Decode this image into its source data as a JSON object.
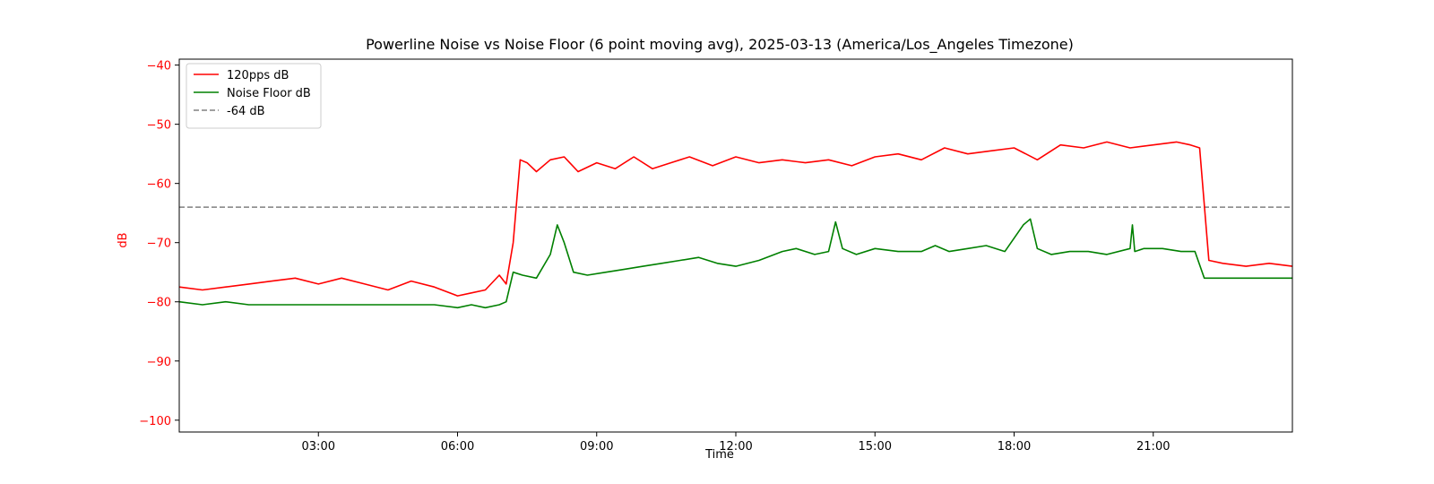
{
  "chart_data": {
    "type": "line",
    "title": "Powerline Noise vs Noise Floor (6 point moving avg), 2025-03-13 (America/Los_Angeles Timezone)",
    "xlabel": "Time",
    "ylabel": "dB",
    "xlim": [
      0,
      24
    ],
    "ylim": [
      -102,
      -39
    ],
    "xticks": [
      {
        "value": 3,
        "label": "03:00"
      },
      {
        "value": 6,
        "label": "06:00"
      },
      {
        "value": 9,
        "label": "09:00"
      },
      {
        "value": 12,
        "label": "12:00"
      },
      {
        "value": 15,
        "label": "15:00"
      },
      {
        "value": 18,
        "label": "18:00"
      },
      {
        "value": 21,
        "label": "21:00"
      }
    ],
    "yticks": [
      {
        "value": -40,
        "label": "−40"
      },
      {
        "value": -50,
        "label": "−50"
      },
      {
        "value": -60,
        "label": "−60"
      },
      {
        "value": -70,
        "label": "−70"
      },
      {
        "value": -80,
        "label": "−80"
      },
      {
        "value": -90,
        "label": "−90"
      },
      {
        "value": -100,
        "label": "−100"
      }
    ],
    "grid": false,
    "legend_position": "top-left",
    "series": [
      {
        "name": "120pps dB",
        "color": "#ff0000",
        "x": [
          0,
          0.5,
          1.0,
          1.5,
          2.0,
          2.5,
          3.0,
          3.5,
          4.0,
          4.5,
          5.0,
          5.5,
          6.0,
          6.3,
          6.6,
          6.9,
          7.05,
          7.2,
          7.35,
          7.5,
          7.7,
          8.0,
          8.3,
          8.6,
          9.0,
          9.4,
          9.8,
          10.2,
          10.6,
          11.0,
          11.5,
          12.0,
          12.5,
          13.0,
          13.5,
          14.0,
          14.5,
          15.0,
          15.5,
          16.0,
          16.5,
          17.0,
          17.5,
          18.0,
          18.5,
          19.0,
          19.5,
          20.0,
          20.5,
          21.0,
          21.5,
          21.8,
          22.0,
          22.2,
          22.5,
          23.0,
          23.5,
          24.0
        ],
        "values": [
          -77.5,
          -78.0,
          -77.5,
          -77.0,
          -76.5,
          -76.0,
          -77.0,
          -76.0,
          -77.0,
          -78.0,
          -76.5,
          -77.5,
          -79.0,
          -78.5,
          -78.0,
          -75.5,
          -77.0,
          -70.0,
          -56.0,
          -56.5,
          -58.0,
          -56.0,
          -55.5,
          -58.0,
          -56.5,
          -57.5,
          -55.5,
          -57.5,
          -56.5,
          -55.5,
          -57.0,
          -55.5,
          -56.5,
          -56.0,
          -56.5,
          -56.0,
          -57.0,
          -55.5,
          -55.0,
          -56.0,
          -54.0,
          -55.0,
          -54.5,
          -54.0,
          -56.0,
          -53.5,
          -54.0,
          -53.0,
          -54.0,
          -53.5,
          -53.0,
          -53.5,
          -54.0,
          -73.0,
          -73.5,
          -74.0,
          -73.5,
          -74.0
        ]
      },
      {
        "name": "Noise Floor dB",
        "color": "#008000",
        "x": [
          0,
          0.5,
          1.0,
          1.5,
          2.0,
          2.5,
          3.0,
          3.5,
          4.0,
          4.5,
          5.0,
          5.5,
          6.0,
          6.3,
          6.6,
          6.9,
          7.05,
          7.2,
          7.4,
          7.7,
          8.0,
          8.15,
          8.3,
          8.5,
          8.8,
          9.2,
          9.6,
          10.0,
          10.4,
          10.8,
          11.2,
          11.6,
          12.0,
          12.5,
          13.0,
          13.3,
          13.7,
          14.0,
          14.15,
          14.3,
          14.6,
          15.0,
          15.5,
          16.0,
          16.3,
          16.6,
          17.0,
          17.4,
          17.8,
          18.2,
          18.35,
          18.5,
          18.8,
          19.2,
          19.6,
          20.0,
          20.5,
          20.55,
          20.6,
          20.8,
          21.2,
          21.6,
          21.9,
          22.1,
          22.5,
          23.0,
          23.5,
          24.0
        ],
        "values": [
          -80.0,
          -80.5,
          -80.0,
          -80.5,
          -80.5,
          -80.5,
          -80.5,
          -80.5,
          -80.5,
          -80.5,
          -80.5,
          -80.5,
          -81.0,
          -80.5,
          -81.0,
          -80.5,
          -80.0,
          -75.0,
          -75.5,
          -76.0,
          -72.0,
          -67.0,
          -70.0,
          -75.0,
          -75.5,
          -75.0,
          -74.5,
          -74.0,
          -73.5,
          -73.0,
          -72.5,
          -73.5,
          -74.0,
          -73.0,
          -71.5,
          -71.0,
          -72.0,
          -71.5,
          -66.5,
          -71.0,
          -72.0,
          -71.0,
          -71.5,
          -71.5,
          -70.5,
          -71.5,
          -71.0,
          -70.5,
          -71.5,
          -67.0,
          -66.0,
          -71.0,
          -72.0,
          -71.5,
          -71.5,
          -72.0,
          -71.0,
          -67.0,
          -71.5,
          -71.0,
          -71.0,
          -71.5,
          -71.5,
          -76.0,
          -76.0,
          -76.0,
          -76.0,
          -76.0
        ]
      }
    ],
    "reference_lines": [
      {
        "name": "-64 dB",
        "value": -64,
        "color": "#808080",
        "style": "dashed"
      }
    ]
  }
}
